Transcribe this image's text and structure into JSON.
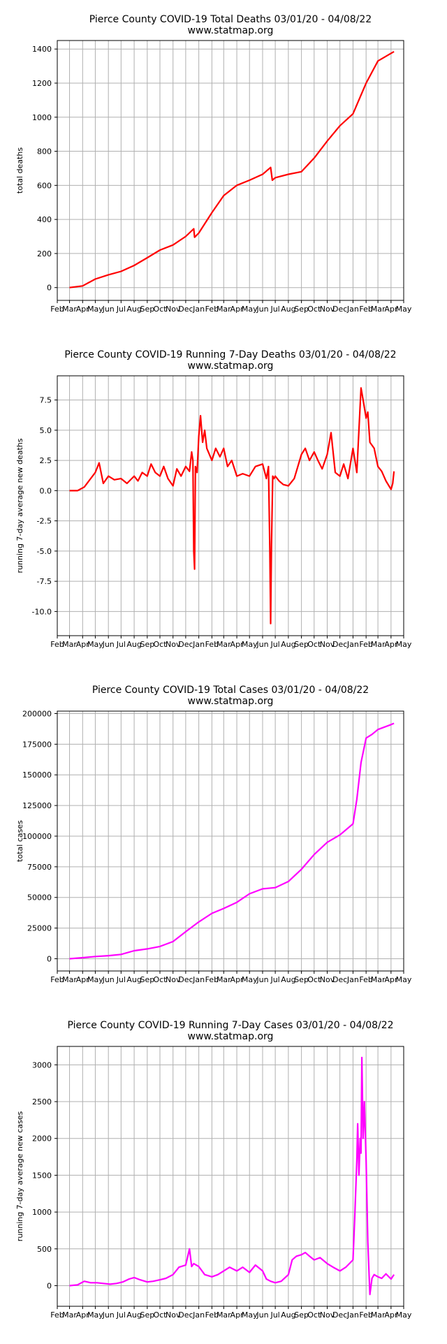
{
  "chart_data": [
    {
      "type": "line",
      "title": "Pierce County COVID-19 Total Deaths 03/01/20 - 04/08/22",
      "subtitle": "www.statmap.org",
      "xlabel": "",
      "ylabel": "total deaths",
      "ylim": [
        -75,
        1450
      ],
      "yticks": [
        0,
        200,
        400,
        600,
        800,
        1000,
        1200,
        1400
      ],
      "grid": true,
      "color": "#ff0000",
      "x": [
        "2020-03-01",
        "2020-04-01",
        "2020-05-01",
        "2020-06-01",
        "2020-07-01",
        "2020-08-01",
        "2020-09-01",
        "2020-10-01",
        "2020-11-01",
        "2020-12-01",
        "2020-12-20",
        "2020-12-22",
        "2021-01-01",
        "2021-02-01",
        "2021-03-01",
        "2021-04-01",
        "2021-05-01",
        "2021-06-01",
        "2021-06-20",
        "2021-06-24",
        "2021-07-01",
        "2021-08-01",
        "2021-09-01",
        "2021-10-01",
        "2021-11-01",
        "2021-12-01",
        "2022-01-01",
        "2022-02-01",
        "2022-03-01",
        "2022-04-01",
        "2022-04-08"
      ],
      "values": [
        0,
        10,
        50,
        75,
        95,
        130,
        175,
        220,
        250,
        300,
        345,
        295,
        320,
        440,
        540,
        600,
        630,
        665,
        705,
        630,
        645,
        665,
        680,
        760,
        860,
        950,
        1020,
        1200,
        1330,
        1375,
        1385
      ]
    },
    {
      "type": "line",
      "title": "Pierce County COVID-19 Running 7-Day Deaths 03/01/20 - 04/08/22",
      "subtitle": "www.statmap.org",
      "xlabel": "",
      "ylabel": "running 7-day average new deaths",
      "ylim": [
        -12,
        9.5
      ],
      "yticks": [
        -10.0,
        -7.5,
        -5.0,
        -2.5,
        0.0,
        2.5,
        5.0,
        7.5
      ],
      "grid": true,
      "color": "#ff0000",
      "x": [
        "2020-03-01",
        "2020-03-20",
        "2020-04-05",
        "2020-04-20",
        "2020-05-01",
        "2020-05-10",
        "2020-05-20",
        "2020-06-01",
        "2020-06-15",
        "2020-07-01",
        "2020-07-15",
        "2020-08-01",
        "2020-08-10",
        "2020-08-20",
        "2020-09-01",
        "2020-09-10",
        "2020-09-20",
        "2020-10-01",
        "2020-10-10",
        "2020-10-20",
        "2020-11-01",
        "2020-11-10",
        "2020-11-20",
        "2020-12-01",
        "2020-12-10",
        "2020-12-15",
        "2020-12-18",
        "2020-12-20",
        "2020-12-22",
        "2020-12-24",
        "2020-12-28",
        "2021-01-01",
        "2021-01-05",
        "2021-01-10",
        "2021-01-15",
        "2021-01-20",
        "2021-02-01",
        "2021-02-10",
        "2021-02-20",
        "2021-03-01",
        "2021-03-10",
        "2021-03-20",
        "2021-04-01",
        "2021-04-15",
        "2021-05-01",
        "2021-05-15",
        "2021-06-01",
        "2021-06-10",
        "2021-06-15",
        "2021-06-18",
        "2021-06-20",
        "2021-06-22",
        "2021-06-25",
        "2021-06-28",
        "2021-07-01",
        "2021-07-10",
        "2021-07-20",
        "2021-08-01",
        "2021-08-15",
        "2021-09-01",
        "2021-09-10",
        "2021-09-20",
        "2021-10-01",
        "2021-10-10",
        "2021-10-20",
        "2021-11-01",
        "2021-11-10",
        "2021-11-20",
        "2021-12-01",
        "2021-12-10",
        "2021-12-20",
        "2022-01-01",
        "2022-01-10",
        "2022-01-20",
        "2022-01-25",
        "2022-02-01",
        "2022-02-05",
        "2022-02-10",
        "2022-02-20",
        "2022-03-01",
        "2022-03-10",
        "2022-03-20",
        "2022-04-01",
        "2022-04-05",
        "2022-04-08"
      ],
      "values": [
        0.0,
        0.0,
        0.3,
        1.0,
        1.5,
        2.3,
        0.6,
        1.2,
        0.9,
        1.0,
        0.6,
        1.2,
        0.8,
        1.5,
        1.2,
        2.2,
        1.5,
        1.2,
        2.0,
        1.0,
        0.4,
        1.8,
        1.2,
        2.0,
        1.6,
        3.2,
        2.5,
        -5.0,
        -6.5,
        2.0,
        1.5,
        4.5,
        6.2,
        4.0,
        5.0,
        3.5,
        2.5,
        3.5,
        2.8,
        3.5,
        2.0,
        2.5,
        1.2,
        1.4,
        1.2,
        2.0,
        2.2,
        1.0,
        2.0,
        -4.8,
        -11.0,
        -4.5,
        1.2,
        1.0,
        1.2,
        0.8,
        0.5,
        0.4,
        1.0,
        3.0,
        3.5,
        2.5,
        3.2,
        2.5,
        1.8,
        3.0,
        4.8,
        1.5,
        1.2,
        2.2,
        1.0,
        3.5,
        1.5,
        8.5,
        7.5,
        6.0,
        6.5,
        4.0,
        3.5,
        2.0,
        1.6,
        0.8,
        0.1,
        0.6,
        1.6
      ]
    },
    {
      "type": "line",
      "title": "Pierce County COVID-19 Total Cases 03/01/20 - 04/08/22",
      "subtitle": "www.statmap.org",
      "xlabel": "",
      "ylabel": "total cases",
      "ylim": [
        -10000,
        202000
      ],
      "yticks": [
        0,
        25000,
        50000,
        75000,
        100000,
        125000,
        150000,
        175000,
        200000
      ],
      "grid": true,
      "color": "#ff00ff",
      "x": [
        "2020-03-01",
        "2020-04-01",
        "2020-05-01",
        "2020-06-01",
        "2020-07-01",
        "2020-08-01",
        "2020-09-01",
        "2020-10-01",
        "2020-11-01",
        "2020-12-01",
        "2021-01-01",
        "2021-02-01",
        "2021-03-01",
        "2021-04-01",
        "2021-05-01",
        "2021-06-01",
        "2021-07-01",
        "2021-08-01",
        "2021-09-01",
        "2021-10-01",
        "2021-11-01",
        "2021-12-01",
        "2022-01-01",
        "2022-01-10",
        "2022-01-20",
        "2022-02-01",
        "2022-02-15",
        "2022-03-01",
        "2022-04-01",
        "2022-04-08"
      ],
      "values": [
        0,
        800,
        1800,
        2500,
        3500,
        6500,
        8000,
        10000,
        14000,
        22000,
        30000,
        37000,
        41000,
        46000,
        53000,
        57000,
        58000,
        63000,
        73000,
        85000,
        95000,
        101000,
        110000,
        130000,
        160000,
        180000,
        183000,
        187000,
        191000,
        192000
      ]
    },
    {
      "type": "line",
      "title": "Pierce County COVID-19 Running 7-Day Cases 03/01/20 - 04/08/22",
      "subtitle": "www.statmap.org",
      "xlabel": "",
      "ylabel": "running 7-day average new cases",
      "ylim": [
        -280,
        3250
      ],
      "yticks": [
        0,
        500,
        1000,
        1500,
        2000,
        2500,
        3000
      ],
      "grid": true,
      "color": "#ff00ff",
      "x": [
        "2020-03-01",
        "2020-03-20",
        "2020-04-05",
        "2020-04-20",
        "2020-05-05",
        "2020-05-20",
        "2020-06-05",
        "2020-06-20",
        "2020-07-05",
        "2020-07-20",
        "2020-08-01",
        "2020-08-15",
        "2020-09-01",
        "2020-09-15",
        "2020-10-01",
        "2020-10-15",
        "2020-11-01",
        "2020-11-15",
        "2020-12-01",
        "2020-12-10",
        "2020-12-15",
        "2020-12-20",
        "2021-01-01",
        "2021-01-15",
        "2021-02-01",
        "2021-02-15",
        "2021-03-01",
        "2021-03-15",
        "2021-04-01",
        "2021-04-15",
        "2021-05-01",
        "2021-05-15",
        "2021-06-01",
        "2021-06-10",
        "2021-06-20",
        "2021-07-01",
        "2021-07-15",
        "2021-08-01",
        "2021-08-10",
        "2021-08-20",
        "2021-09-01",
        "2021-09-10",
        "2021-09-20",
        "2021-10-01",
        "2021-10-15",
        "2021-11-01",
        "2021-11-15",
        "2021-12-01",
        "2021-12-15",
        "2022-01-01",
        "2022-01-05",
        "2022-01-10",
        "2022-01-12",
        "2022-01-15",
        "2022-01-18",
        "2022-01-20",
        "2022-01-22",
        "2022-01-25",
        "2022-01-28",
        "2022-02-01",
        "2022-02-05",
        "2022-02-10",
        "2022-02-15",
        "2022-02-20",
        "2022-03-01",
        "2022-03-10",
        "2022-03-20",
        "2022-04-01",
        "2022-04-08"
      ],
      "values": [
        0,
        10,
        60,
        40,
        40,
        30,
        20,
        30,
        50,
        90,
        110,
        80,
        50,
        60,
        80,
        100,
        150,
        250,
        280,
        500,
        260,
        300,
        260,
        150,
        120,
        150,
        200,
        250,
        200,
        250,
        180,
        280,
        200,
        90,
        60,
        40,
        60,
        150,
        350,
        400,
        420,
        450,
        400,
        350,
        380,
        300,
        250,
        200,
        250,
        350,
        900,
        1700,
        2200,
        1500,
        2000,
        1800,
        3100,
        2000,
        2500,
        1700,
        600,
        -120,
        100,
        150,
        120,
        100,
        160,
        90,
        150
      ]
    }
  ],
  "x_axis": {
    "tick_labels": [
      "Feb",
      "Mar",
      "Apr",
      "May",
      "Jun",
      "Jul",
      "Aug",
      "Sep",
      "Oct",
      "Nov",
      "Dec",
      "Jan",
      "Feb",
      "Mar",
      "Apr",
      "May",
      "Jun",
      "Jul",
      "Aug",
      "Sep",
      "Oct",
      "Nov",
      "Dec",
      "Jan",
      "Feb",
      "Mar",
      "Apr",
      "May"
    ],
    "range": [
      "2020-02-01",
      "2022-05-01"
    ]
  }
}
